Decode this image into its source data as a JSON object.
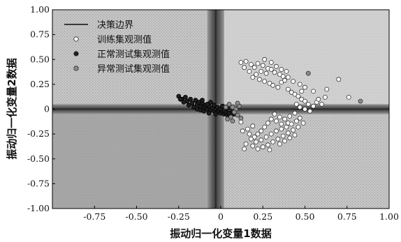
{
  "chart_data": {
    "type": "scatter",
    "xlabel": "振动归一化变量1数据",
    "ylabel": "振动归一化变量2数据",
    "xlim": [
      -1.0,
      1.0
    ],
    "ylim": [
      -1.0,
      1.0
    ],
    "x_ticks": [
      "-0.75",
      "-0.50",
      "-0.25",
      "0",
      "0.25",
      "0.50",
      "0.75",
      "1.00"
    ],
    "x_tick_values": [
      -0.75,
      -0.5,
      -0.25,
      0,
      0.25,
      0.5,
      0.75,
      1.0
    ],
    "y_ticks": [
      "1.00",
      "0.75",
      "0.50",
      "0.25",
      "0",
      "-0.25",
      "-0.50",
      "-0.75",
      "-1.00"
    ],
    "y_tick_values": [
      1.0,
      0.75,
      0.5,
      0.25,
      0,
      -0.25,
      -0.5,
      -0.75,
      -1.0
    ],
    "decision_boundary": {
      "vertical_band": [
        -0.08,
        0.02
      ],
      "horizontal_band": [
        -0.05,
        0.05
      ]
    },
    "legend": {
      "position": "top-left",
      "items": [
        {
          "label": "决策边界",
          "marker": "line",
          "color": "#3a3a3a"
        },
        {
          "label": "训练集观测值",
          "marker": "open-circle",
          "color": "#ffffff"
        },
        {
          "label": "正常测试集观测值",
          "marker": "filled-circle",
          "color": "#1e1e1e"
        },
        {
          "label": "异常测试集观测值",
          "marker": "gray-circle",
          "color": "#8c8c8c"
        }
      ]
    },
    "colors": {
      "background_light": "#bdbdbd",
      "background_dark": "#8a8a8a",
      "boundary_band": "#4a4a4a",
      "axis": "#000000"
    },
    "series": [
      {
        "name": "训练集观测值",
        "points": [
          [
            0.15,
            0.48
          ],
          [
            0.18,
            0.45
          ],
          [
            0.2,
            0.42
          ],
          [
            0.22,
            0.46
          ],
          [
            0.25,
            0.44
          ],
          [
            0.28,
            0.41
          ],
          [
            0.3,
            0.4
          ],
          [
            0.32,
            0.37
          ],
          [
            0.35,
            0.35
          ],
          [
            0.37,
            0.33
          ],
          [
            0.24,
            0.38
          ],
          [
            0.27,
            0.36
          ],
          [
            0.21,
            0.35
          ],
          [
            0.19,
            0.32
          ],
          [
            0.23,
            0.3
          ],
          [
            0.26,
            0.28
          ],
          [
            0.29,
            0.26
          ],
          [
            0.31,
            0.24
          ],
          [
            0.34,
            0.22
          ],
          [
            0.36,
            0.27
          ],
          [
            0.38,
            0.29
          ],
          [
            0.4,
            0.2
          ],
          [
            0.42,
            0.17
          ],
          [
            0.44,
            0.15
          ],
          [
            0.46,
            0.13
          ],
          [
            0.48,
            0.1
          ],
          [
            0.5,
            0.08
          ],
          [
            0.52,
            0.05
          ],
          [
            0.45,
            0.05
          ],
          [
            0.47,
            0.02
          ],
          [
            0.5,
            0.0
          ],
          [
            0.53,
            -0.02
          ],
          [
            0.55,
            0.03
          ],
          [
            0.57,
            0.07
          ],
          [
            0.6,
            0.05
          ],
          [
            0.58,
            0.1
          ],
          [
            0.62,
            0.12
          ],
          [
            0.55,
            0.18
          ],
          [
            0.5,
            0.22
          ],
          [
            0.47,
            0.25
          ],
          [
            0.43,
            0.28
          ],
          [
            0.4,
            0.32
          ],
          [
            0.33,
            0.43
          ],
          [
            0.26,
            0.5
          ],
          [
            0.3,
            0.47
          ],
          [
            0.17,
            0.38
          ],
          [
            0.14,
            0.42
          ],
          [
            0.12,
            0.47
          ],
          [
            0.39,
            0.38
          ],
          [
            0.36,
            0.4
          ],
          [
            0.48,
            0.18
          ],
          [
            0.63,
            0.2
          ],
          [
            0.7,
            0.3
          ],
          [
            0.76,
            0.12
          ],
          [
            0.32,
            -0.05
          ],
          [
            0.35,
            -0.08
          ],
          [
            0.38,
            -0.1
          ],
          [
            0.41,
            -0.07
          ],
          [
            0.44,
            -0.04
          ],
          [
            0.4,
            -0.14
          ],
          [
            0.36,
            -0.15
          ],
          [
            0.33,
            -0.12
          ],
          [
            0.3,
            -0.1
          ],
          [
            0.28,
            -0.14
          ],
          [
            0.26,
            -0.18
          ],
          [
            0.24,
            -0.22
          ],
          [
            0.22,
            -0.25
          ],
          [
            0.2,
            -0.28
          ],
          [
            0.18,
            -0.3
          ],
          [
            0.21,
            -0.33
          ],
          [
            0.24,
            -0.31
          ],
          [
            0.27,
            -0.28
          ],
          [
            0.3,
            -0.25
          ],
          [
            0.33,
            -0.22
          ],
          [
            0.36,
            -0.2
          ],
          [
            0.39,
            -0.18
          ],
          [
            0.42,
            -0.15
          ],
          [
            0.45,
            -0.12
          ],
          [
            0.47,
            -0.09
          ],
          [
            0.49,
            -0.14
          ],
          [
            0.46,
            -0.18
          ],
          [
            0.43,
            -0.21
          ],
          [
            0.4,
            -0.24
          ],
          [
            0.37,
            -0.27
          ],
          [
            0.34,
            -0.3
          ],
          [
            0.31,
            -0.33
          ],
          [
            0.28,
            -0.36
          ],
          [
            0.25,
            -0.38
          ],
          [
            0.22,
            -0.4
          ],
          [
            0.19,
            -0.37
          ],
          [
            0.15,
            -0.35
          ],
          [
            0.14,
            -0.4
          ],
          [
            0.17,
            -0.25
          ],
          [
            0.16,
            -0.2
          ],
          [
            0.13,
            -0.22
          ],
          [
            0.35,
            -0.35
          ],
          [
            0.38,
            -0.32
          ],
          [
            0.41,
            -0.29
          ],
          [
            0.44,
            -0.26
          ],
          [
            0.29,
            -0.41
          ],
          [
            0.12,
            -0.13
          ],
          [
            0.19,
            -0.17
          ]
        ]
      },
      {
        "name": "正常测试集观测值",
        "points": [
          [
            -0.25,
            0.13
          ],
          [
            -0.23,
            0.1
          ],
          [
            -0.21,
            0.12
          ],
          [
            -0.2,
            0.08
          ],
          [
            -0.18,
            0.1
          ],
          [
            -0.17,
            0.06
          ],
          [
            -0.15,
            0.09
          ],
          [
            -0.14,
            0.05
          ],
          [
            -0.13,
            0.07
          ],
          [
            -0.12,
            0.03
          ],
          [
            -0.11,
            0.06
          ],
          [
            -0.1,
            0.02
          ],
          [
            -0.09,
            0.04
          ],
          [
            -0.08,
            0.0
          ],
          [
            -0.07,
            0.03
          ],
          [
            -0.06,
            -0.01
          ],
          [
            -0.05,
            0.01
          ],
          [
            -0.04,
            -0.02
          ],
          [
            -0.03,
            0.0
          ],
          [
            -0.02,
            -0.03
          ],
          [
            -0.01,
            -0.01
          ],
          [
            0.0,
            -0.04
          ],
          [
            0.01,
            -0.02
          ],
          [
            0.02,
            -0.05
          ],
          [
            0.03,
            -0.03
          ],
          [
            0.04,
            -0.06
          ],
          [
            0.05,
            -0.04
          ],
          [
            0.06,
            -0.07
          ],
          [
            -0.16,
            0.02
          ],
          [
            -0.14,
            0.0
          ],
          [
            -0.12,
            -0.01
          ],
          [
            -0.1,
            -0.02
          ],
          [
            -0.08,
            0.05
          ],
          [
            -0.06,
            0.07
          ],
          [
            -0.04,
            0.04
          ],
          [
            -0.02,
            0.02
          ],
          [
            0.0,
            0.0
          ],
          [
            0.02,
            -0.01
          ],
          [
            -0.19,
            0.04
          ],
          [
            -0.22,
            0.07
          ],
          [
            -0.07,
            -0.04
          ],
          [
            -0.03,
            -0.05
          ],
          [
            0.01,
            0.03
          ],
          [
            0.04,
            0.01
          ],
          [
            -0.11,
            0.09
          ],
          [
            0.07,
            -0.02
          ],
          [
            0.08,
            -0.05
          ],
          [
            -0.24,
            0.1
          ]
        ]
      },
      {
        "name": "异常测试集观测值",
        "points": [
          [
            0.05,
            0.05
          ],
          [
            0.07,
            0.02
          ],
          [
            0.09,
            0.0
          ],
          [
            0.08,
            -0.03
          ],
          [
            0.1,
            -0.06
          ],
          [
            0.06,
            -0.08
          ],
          [
            0.04,
            -0.1
          ],
          [
            0.11,
            0.03
          ],
          [
            0.03,
            0.02
          ],
          [
            0.12,
            -0.09
          ],
          [
            0.52,
            0.36
          ],
          [
            0.83,
            0.08
          ],
          [
            0.07,
            -0.12
          ],
          [
            0.1,
            0.06
          ]
        ]
      }
    ]
  }
}
